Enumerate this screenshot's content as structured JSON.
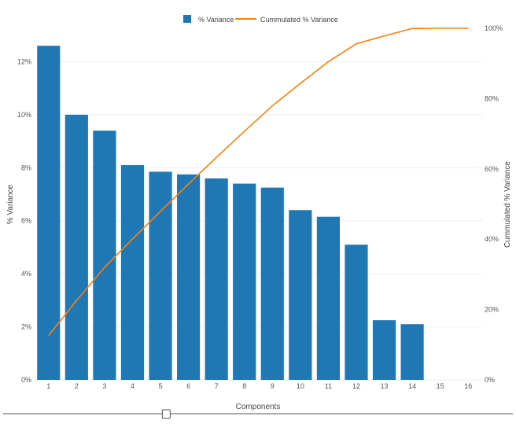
{
  "chart_data": {
    "type": "bar",
    "title": "",
    "xlabel": "Components",
    "ylabel": "% Variance",
    "y2label": "Cummulated % Variance",
    "categories": [
      "1",
      "2",
      "3",
      "4",
      "5",
      "6",
      "7",
      "8",
      "9",
      "10",
      "11",
      "12",
      "13",
      "14",
      "15",
      "16"
    ],
    "series": [
      {
        "name": "% Variance",
        "type": "bar",
        "axis": "left",
        "color": "#1f77b4",
        "values": [
          12.6,
          10.0,
          9.4,
          8.1,
          7.85,
          7.75,
          7.6,
          7.4,
          7.25,
          6.4,
          6.15,
          5.1,
          2.25,
          2.1,
          0,
          0
        ]
      },
      {
        "name": "Cummulated % Variance",
        "type": "line",
        "axis": "right",
        "color": "#ff7f0e",
        "values": [
          12.6,
          22.6,
          32.0,
          40.1,
          47.95,
          55.7,
          63.3,
          70.7,
          77.95,
          84.35,
          90.5,
          95.6,
          97.85,
          99.95,
          100,
          100
        ]
      }
    ],
    "ylim": [
      0,
      13.2
    ],
    "y_ticks": [
      "0%",
      "2%",
      "4%",
      "6%",
      "8%",
      "10%",
      "12%"
    ],
    "y2lim": [
      0,
      100
    ],
    "y2_ticks": [
      "0%",
      "20%",
      "40%",
      "60%",
      "80%",
      "100%"
    ],
    "grid": true,
    "legend": "top-center"
  },
  "range_slider": {
    "position": 0.32
  }
}
